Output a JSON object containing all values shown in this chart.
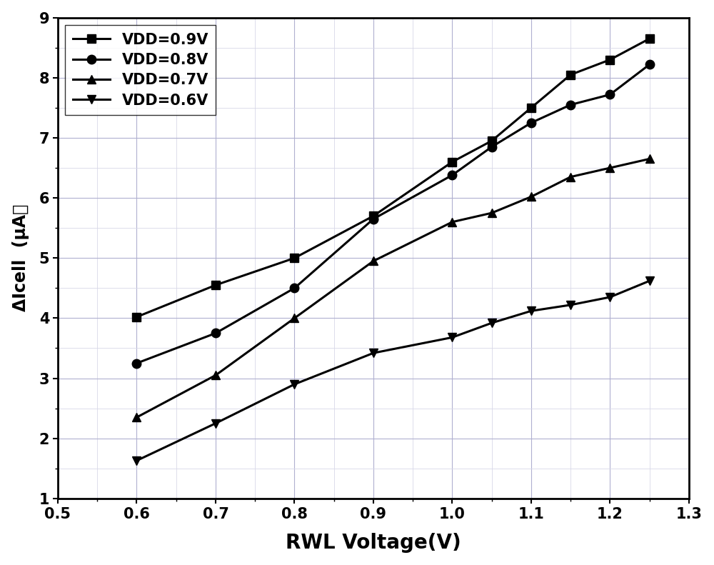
{
  "x_values": [
    0.6,
    0.7,
    0.8,
    0.9,
    1.0,
    1.05,
    1.1,
    1.15,
    1.2,
    1.25
  ],
  "series": [
    {
      "label": "VDD=0.9V",
      "marker": "s",
      "y": [
        4.02,
        4.55,
        5.0,
        5.7,
        6.6,
        6.95,
        7.5,
        8.05,
        8.3,
        8.65
      ]
    },
    {
      "label": "VDD=0.8V",
      "marker": "o",
      "y": [
        3.25,
        3.75,
        4.5,
        5.65,
        6.38,
        6.85,
        7.25,
        7.55,
        7.72,
        8.22
      ]
    },
    {
      "label": "VDD=0.7V",
      "marker": "^",
      "y": [
        2.35,
        3.05,
        4.0,
        4.95,
        5.6,
        5.75,
        6.02,
        6.35,
        6.5,
        6.65
      ]
    },
    {
      "label": "VDD=0.6V",
      "marker": "v",
      "y": [
        1.63,
        2.25,
        2.9,
        3.42,
        3.68,
        3.92,
        4.12,
        4.22,
        4.35,
        4.62
      ]
    }
  ],
  "line_color": "#000000",
  "line_width": 2.2,
  "marker_size": 9,
  "xlabel": "RWL Voltage(V)",
  "ylabel_line1": "ΔIcell  (μA）",
  "xlim": [
    0.5,
    1.3
  ],
  "ylim": [
    1.0,
    9.0
  ],
  "xtick_labels": [
    "0.5",
    "0.6",
    "0.7",
    "0.8",
    "0.9",
    "1.0",
    "1.1",
    "1.2",
    "1.3"
  ],
  "xtick_vals": [
    0.5,
    0.6,
    0.7,
    0.8,
    0.9,
    1.0,
    1.1,
    1.2,
    1.3
  ],
  "ytick_labels": [
    "1",
    "2",
    "3",
    "4",
    "5",
    "6",
    "7",
    "8",
    "9"
  ],
  "ytick_vals": [
    1,
    2,
    3,
    4,
    5,
    6,
    7,
    8,
    9
  ],
  "grid_major_color_x": "#b0b0d0",
  "grid_major_color_y": "#b0b0d0",
  "grid_minor_color": "#d8d8e8",
  "background_color": "#ffffff",
  "legend_fontsize": 15,
  "xlabel_fontsize": 20,
  "ylabel_fontsize": 17,
  "tick_fontsize": 15
}
